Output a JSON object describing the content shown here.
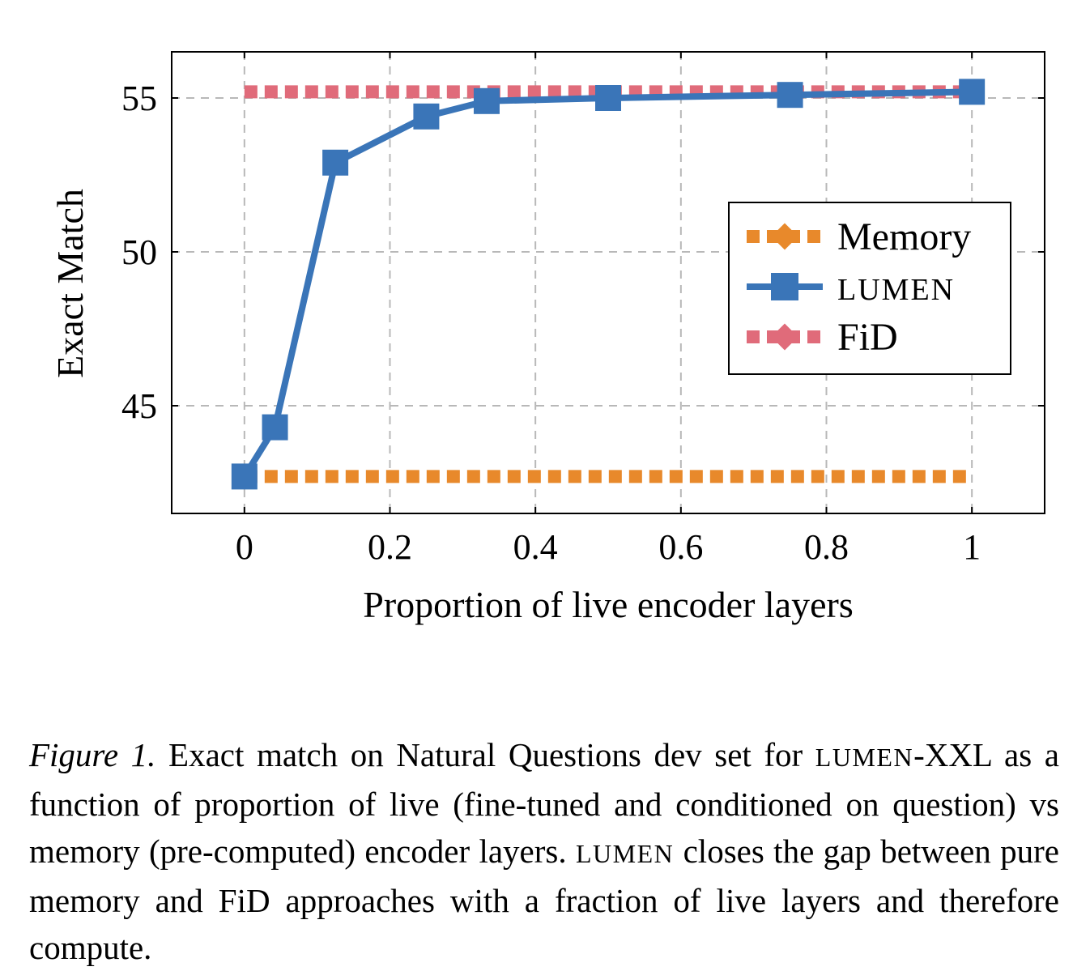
{
  "chart_data": {
    "type": "line",
    "xlabel": "Proportion of live encoder layers",
    "ylabel": "Exact Match",
    "xlim": [
      -0.1,
      1.1
    ],
    "ylim": [
      41.5,
      56.5
    ],
    "xticks": [
      0,
      0.2,
      0.4,
      0.6,
      0.8,
      1
    ],
    "xtick_labels": [
      "0",
      "0.2",
      "0.4",
      "0.6",
      "0.8",
      "1"
    ],
    "yticks": [
      45,
      50,
      55
    ],
    "ytick_labels": [
      "45",
      "50",
      "55"
    ],
    "grid": true,
    "legend_position": "right",
    "series": [
      {
        "name": "Memory",
        "color": "#e8892b",
        "style": "dotted",
        "marker": "diamond",
        "x": [
          0,
          1
        ],
        "y": [
          42.7,
          42.7
        ]
      },
      {
        "name": "LUMEN",
        "color": "#3a75b8",
        "style": "solid",
        "marker": "square",
        "x": [
          0,
          0.042,
          0.125,
          0.25,
          0.333,
          0.5,
          0.75,
          1
        ],
        "y": [
          42.7,
          44.3,
          52.9,
          54.4,
          54.9,
          55.0,
          55.1,
          55.2
        ]
      },
      {
        "name": "FiD",
        "color": "#e06b7a",
        "style": "dotted",
        "marker": "diamond",
        "x": [
          0,
          1
        ],
        "y": [
          55.2,
          55.2
        ]
      }
    ]
  },
  "caption": {
    "figure_label": "Figure 1.",
    "text_1": " Exact match on Natural Questions dev set for ",
    "lumen_1": "LUMEN",
    "text_2": "-XXL as a function of proportion of live (fine-tuned and conditioned on question) vs memory (pre-computed) encoder layers. ",
    "lumen_2": "LUMEN",
    "text_3": " closes the gap between pure memory and FiD approaches with a fraction of live layers and therefore compute."
  }
}
